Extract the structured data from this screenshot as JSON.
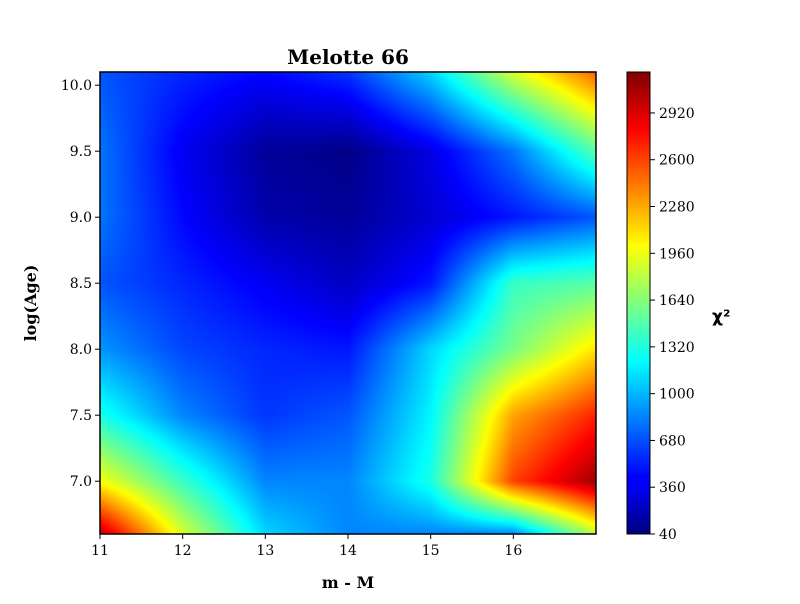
{
  "chart_data": {
    "type": "heatmap",
    "title": "Melotte 66",
    "xlabel": "m - M",
    "ylabel": "log(Age)",
    "colorbar_label": "χ²",
    "colormap": "jet",
    "xlim": [
      11.0,
      17.0
    ],
    "ylim": [
      6.6,
      10.1
    ],
    "x_ticks": [
      11,
      12,
      13,
      14,
      15,
      16
    ],
    "y_ticks": [
      "7.0",
      "7.5",
      "8.0",
      "8.5",
      "9.0",
      "9.5",
      "10.0"
    ],
    "clim": [
      40,
      3200
    ],
    "colorbar_ticks": [
      40,
      360,
      680,
      1000,
      1320,
      1640,
      1960,
      2280,
      2600,
      2920
    ],
    "grid": false,
    "z_samples": {
      "x": [
        11,
        12,
        13,
        14,
        15,
        16,
        17
      ],
      "y": [
        6.6,
        7.0,
        7.5,
        8.0,
        8.5,
        9.0,
        9.5,
        10.1
      ],
      "values": [
        [
          3000,
          1900,
          1100,
          850,
          850,
          850,
          1800
        ],
        [
          2000,
          1400,
          850,
          850,
          1300,
          2600,
          3100
        ],
        [
          1300,
          850,
          600,
          700,
          1200,
          2300,
          2700
        ],
        [
          900,
          650,
          550,
          500,
          1100,
          1600,
          2100
        ],
        [
          700,
          550,
          400,
          250,
          500,
          1400,
          1500
        ],
        [
          800,
          450,
          180,
          120,
          300,
          500,
          700
        ],
        [
          800,
          400,
          120,
          60,
          350,
          800,
          1500
        ],
        [
          700,
          550,
          450,
          600,
          1100,
          1900,
          2500
        ]
      ]
    }
  }
}
